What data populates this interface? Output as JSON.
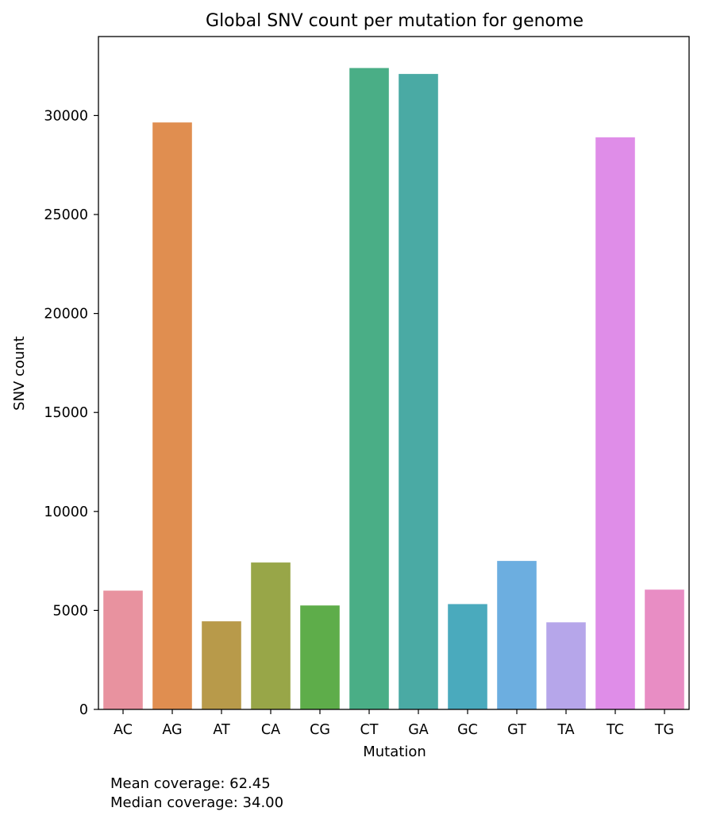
{
  "chart_data": {
    "type": "bar",
    "title": "Global SNV count per mutation for genome",
    "xlabel": "Mutation",
    "ylabel": "SNV count",
    "categories": [
      "AC",
      "AG",
      "AT",
      "CA",
      "CG",
      "CT",
      "GA",
      "GC",
      "GT",
      "TA",
      "TC",
      "TG"
    ],
    "values": [
      6000,
      29650,
      4450,
      7420,
      5250,
      32400,
      32100,
      5320,
      7500,
      4400,
      28900,
      6050
    ],
    "colors": [
      "#e8929f",
      "#e08e50",
      "#b89a4a",
      "#98a648",
      "#5ead4a",
      "#4aae86",
      "#4aaaa4",
      "#4aaabd",
      "#6caee0",
      "#b6a6ea",
      "#df8de8",
      "#e88dc4"
    ],
    "ylim": [
      0,
      33990
    ],
    "yticks": [
      0,
      5000,
      10000,
      15000,
      20000,
      25000,
      30000
    ],
    "grid": false,
    "legend": "none"
  },
  "annotations": {
    "mean_coverage": "Mean coverage: 62.45",
    "median_coverage": "Median coverage: 34.00"
  }
}
